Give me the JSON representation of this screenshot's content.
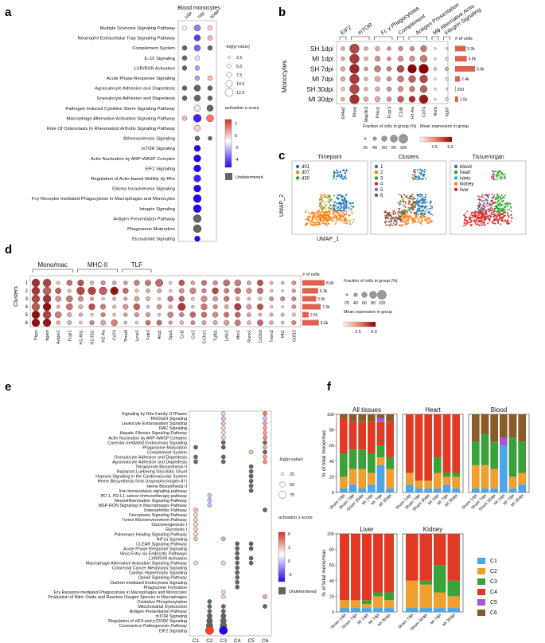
{
  "panels": {
    "a": "a",
    "b": "b",
    "c": "c",
    "d": "d",
    "e": "e",
    "f": "f"
  },
  "colors": {
    "pos": "#d7301f",
    "mid": "#ffffff",
    "neg": "#2b00f0",
    "undet": "#666666",
    "border": "#333333"
  },
  "panel_a": {
    "title": "Blood monocytes",
    "cols": [
      "1dpi",
      "7dpi",
      "30dpi"
    ],
    "rows": [
      "Multiple Sclerosis Signaling Pathway",
      "Neutrophil Extracellular Trap Signaling Pathway",
      "Complement System",
      "IL-10 Signaling",
      "LXR/RXR Activation",
      "Acute Phase Response Signaling",
      "Agranulocyte Adhesion and Diapedesis",
      "Granulocyte Adhesion and Diapedesis",
      "Pathogen Induced Cytokine Storm Signaling Pathway",
      "Macrophage Alternative Activation Signaling Pathway",
      "Role Of Osteoclasts In Rheumatoid Arthritis Signaling Pathway",
      "Atherosclerosis Signaling",
      "mTOR Signaling",
      "Actin Nucleation by ARP-WASP Complex",
      "EIF2 Signaling",
      "Regulation of Actin-based Motility by Rho",
      "Glioma Invasiveness Signaling",
      "Fcγ Receptor-mediated Phagocytosis in Macrophages and Monocytes",
      "Integrin Signaling",
      "Antigen Presentation Pathway",
      "Phagosome Maturation",
      "Eicosanoid Signaling"
    ],
    "size_title": "-log(p-value)",
    "size_legend": [
      "2.5",
      "5.0",
      "7.5",
      "10.0",
      "12.5"
    ],
    "color_title": "activation z-score",
    "color_ticks": [
      "2",
      "0",
      "-2",
      "-4"
    ],
    "undetermined": "Undetermined"
  },
  "panel_b": {
    "ylabel": "Monocytes",
    "rows": [
      "SH 1dpi",
      "MI 1dpi",
      "SH 7dpi",
      "MI 7dpi",
      "SH 30dpi",
      "MI 30dpi"
    ],
    "genes": [
      "Eif4a2",
      "Rhoa",
      "Map3k3",
      "Prkcd",
      "Fcgr3",
      "C1qb",
      "H2-Aa",
      "Cd74",
      "Rxrb",
      "Itgb7"
    ],
    "groups": [
      "EIF2",
      "mTOR",
      "Fc γ Phagocytosis",
      "Complement",
      "Antigen Presentation",
      "Mϕ Alternative Activ.",
      "Integrin Signaling"
    ],
    "ncells_title": "# of cells",
    "ncells": [
      5300,
      5800,
      9900,
      2400,
      269,
      1500
    ],
    "ncells_labels": [
      "5.3k",
      "5.8k",
      "9.9k",
      "2.4k",
      "269",
      "1.5k"
    ],
    "frac_title": "Fraction of cells in group (%)",
    "frac_ticks": [
      "20",
      "40",
      "60",
      "80",
      "100"
    ],
    "expr_title": "Mean expression in group",
    "expr_ticks": [
      "2.5",
      "5.0"
    ]
  },
  "panel_c": {
    "xlabel": "UMAP_1",
    "ylabel": "UMAP_2",
    "plots": [
      {
        "title": "Timepoint",
        "legend": [
          "d01",
          "d07",
          "d30"
        ],
        "colors": [
          "#1f77b4",
          "#ff7f0e",
          "#2ca02c"
        ]
      },
      {
        "title": "Clusters",
        "legend": [
          "1",
          "2",
          "3",
          "4",
          "5",
          "6"
        ],
        "colors": [
          "#1f77b4",
          "#ff7f0e",
          "#2ca02c",
          "#d62728",
          "#9467bd",
          "#8c564b"
        ]
      },
      {
        "title": "Tissue/organ",
        "legend": [
          "blood",
          "heart",
          "islets",
          "kidney",
          "liver"
        ],
        "colors": [
          "#1f77b4",
          "#2ca02c",
          "#17becf",
          "#ff7f0e",
          "#d62728"
        ]
      }
    ]
  },
  "panel_d": {
    "ylabel": "Clusters",
    "rows": [
      "1",
      "2",
      "3",
      "4",
      "5",
      "6"
    ],
    "genes": [
      "Ptprc",
      "Itgam",
      "Adgre1",
      "Fcgr1",
      "H2-Ab1",
      "H2-Eb1",
      "H2-Aa",
      "Cd74",
      "Timd4",
      "Lyve1",
      "Folr2",
      "Arg1",
      "Spp1",
      "Ccl2",
      "Ccr2",
      "Cx3cr1",
      "Tgfb1",
      "Ly6c2",
      "Mrc1",
      "Runx1",
      "Cd163",
      "Trem2",
      "Il4i1",
      "Gdf15"
    ],
    "groups": [
      "Mono/mac",
      "MHC-II",
      "TLF"
    ],
    "ncells_title": "# of cells",
    "ncells": [
      8900,
      6300,
      5500,
      7300,
      2500,
      6600
    ],
    "ncells_labels": [
      "8.9k",
      "6.3k",
      "5.5k",
      "7.3k",
      "2.5k",
      "6.6k"
    ],
    "frac_title": "Fraction of cells in group (%)",
    "frac_ticks": [
      "20",
      "40",
      "60",
      "80",
      "100"
    ],
    "expr_title": "Mean expression in group",
    "expr_ticks": [
      "2.5",
      "5.0"
    ]
  },
  "panel_e": {
    "cols": [
      "C1",
      "C2",
      "C3",
      "C4",
      "C5",
      "C6"
    ],
    "rows": [
      "Signaling by Rho Family GTPases",
      "RHOGDI Signaling",
      "Leukocyte Extravasation Signaling",
      "RAC Signaling",
      "Hepatic Fibrosis Signaling Pathway",
      "Actin Nucleation by ARP-WASP Complex",
      "Caveolar-mediated Endocytosis Signaling",
      "Phagosome Maturation",
      "Complement System",
      "Granulocyte Adhesion and Diapedesis",
      "Agranulocyte Adhesion and Diapedesis",
      "Tetrapyrrole Biosynthesis II",
      "Rapoport-Luebering Glycolytic Shunt",
      "Hypoxia Signaling in the Cardiovascular System",
      "Heme Biosynthesis from Uroporphyrinogen-III I",
      "Heme Biosynthesis II",
      "Iron homeostasis signaling pathway",
      "PD-1, PD-L1 cancer immunotherapy pathway",
      "Neuroinflammation Signaling Pathway",
      "MSP-RON Signaling In Macrophages Pathway",
      "Osteoarthritis Pathway",
      "Ferroptosis Signaling Pathway",
      "Tumor Microenvironment Pathway",
      "Gluconeogenesis I",
      "Glycolysis I",
      "Pulmonary Healing Signaling Pathway",
      "HIF1α Signaling",
      "CLEAR Signaling Pathway",
      "Acute Phase Response Signaling",
      "Virus Entry via Endocytic Pathways",
      "LXR/RXR Activation",
      "Macrophage Alternative Activation Signaling Pathway",
      "Colorectal Cancer Metastasis Signaling",
      "Cardiac Hypertrophy Signaling",
      "Opioid Signaling Pathway",
      "Clathrin-mediated Endocytosis Signaling",
      "Phagosome Formation",
      "Fcγ Receptor-mediated Phagocytosis in Macrophages and Monocytes",
      "Production of Nitric Oxide and Reactive Oxygen Species in Macrophages",
      "Oxidative Phosphorylation",
      "Mitochondrial Dysfunction",
      "Antigen Presentation Pathway",
      "mTOR Signaling",
      "Regulation of eIF4 and p70S6K Signaling",
      "Coronavirus Pathogenesis Pathway",
      "EIF2 Signaling"
    ],
    "size_title": "-log(p-value)",
    "size_legend": [
      "25",
      "50",
      "75"
    ],
    "color_title": "activation z-score",
    "color_ticks": [
      "6",
      "3",
      "0",
      "-3"
    ],
    "undetermined": "Undetermined"
  },
  "panel_f": {
    "ylabel": "% of total mono/mac",
    "yticks": [
      "0",
      "20",
      "40",
      "60",
      "80",
      "100"
    ],
    "legend": [
      "C1",
      "C2",
      "C3",
      "C4",
      "C5",
      "C6"
    ],
    "legend_colors": [
      "#4da6e8",
      "#f0a030",
      "#3aa23a",
      "#e03a24",
      "#a855d8",
      "#8b5a2b"
    ],
    "plots": [
      {
        "title": "All tissues",
        "categories": [
          "Sham 1dpi",
          "Sham 7dpi",
          "Sham 30dpi",
          "MI 1dpi",
          "MI 7dpi",
          "MI 30dpi"
        ],
        "values": [
          [
            5,
            15,
            30,
            45,
            0,
            5
          ],
          [
            10,
            20,
            25,
            35,
            0,
            10
          ],
          [
            5,
            25,
            25,
            35,
            0,
            10
          ],
          [
            10,
            15,
            25,
            40,
            0,
            10
          ],
          [
            35,
            10,
            15,
            30,
            5,
            5
          ],
          [
            5,
            25,
            15,
            45,
            0,
            10
          ]
        ]
      },
      {
        "title": "Heart",
        "categories": [
          "Sham 1dpi",
          "Sham 7dpi",
          "Sham 30dpi",
          "MI 1dpi",
          "MI 7dpi",
          "MI 30dpi"
        ],
        "values": [
          [
            10,
            15,
            0,
            75,
            0,
            0
          ],
          [
            5,
            10,
            0,
            85,
            0,
            0
          ],
          [
            5,
            10,
            0,
            85,
            0,
            0
          ],
          [
            5,
            20,
            20,
            55,
            0,
            0
          ],
          [
            10,
            10,
            5,
            75,
            0,
            0
          ],
          [
            5,
            15,
            5,
            75,
            0,
            0
          ]
        ]
      },
      {
        "title": "Blood",
        "categories": [
          "Sham 1dpi",
          "Sham 7dpi",
          "Sham 30dpi",
          "MI 1dpi",
          "MI 7dpi",
          "MI 30dpi"
        ],
        "values": [
          [
            5,
            30,
            30,
            0,
            0,
            35
          ],
          [
            5,
            30,
            40,
            0,
            0,
            25
          ],
          [
            5,
            25,
            35,
            0,
            0,
            35
          ],
          [
            60,
            0,
            0,
            0,
            10,
            30
          ],
          [
            5,
            15,
            50,
            0,
            0,
            30
          ],
          [
            10,
            15,
            40,
            0,
            0,
            35
          ]
        ]
      },
      {
        "title": "Liver",
        "categories": [
          "Sham 1dpi",
          "Sham 7dpi",
          "MI 1dpi",
          "MI 7dpi",
          "MI 30dpi"
        ],
        "values": [
          [
            5,
            10,
            0,
            85,
            0,
            0
          ],
          [
            5,
            10,
            0,
            85,
            0,
            0
          ],
          [
            5,
            5,
            5,
            85,
            0,
            0
          ],
          [
            5,
            15,
            5,
            75,
            0,
            0
          ],
          [
            5,
            10,
            10,
            75,
            0,
            0
          ]
        ]
      },
      {
        "title": "Kidney",
        "categories": [
          "Sham 7dpi",
          "Sham 30dpi",
          "MI 7dpi",
          "MI 30dpi"
        ],
        "values": [
          [
            5,
            35,
            0,
            60,
            0,
            0
          ],
          [
            5,
            30,
            5,
            60,
            0,
            0
          ],
          [
            5,
            20,
            35,
            40,
            0,
            0
          ],
          [
            5,
            15,
            20,
            60,
            0,
            0
          ]
        ]
      }
    ]
  }
}
